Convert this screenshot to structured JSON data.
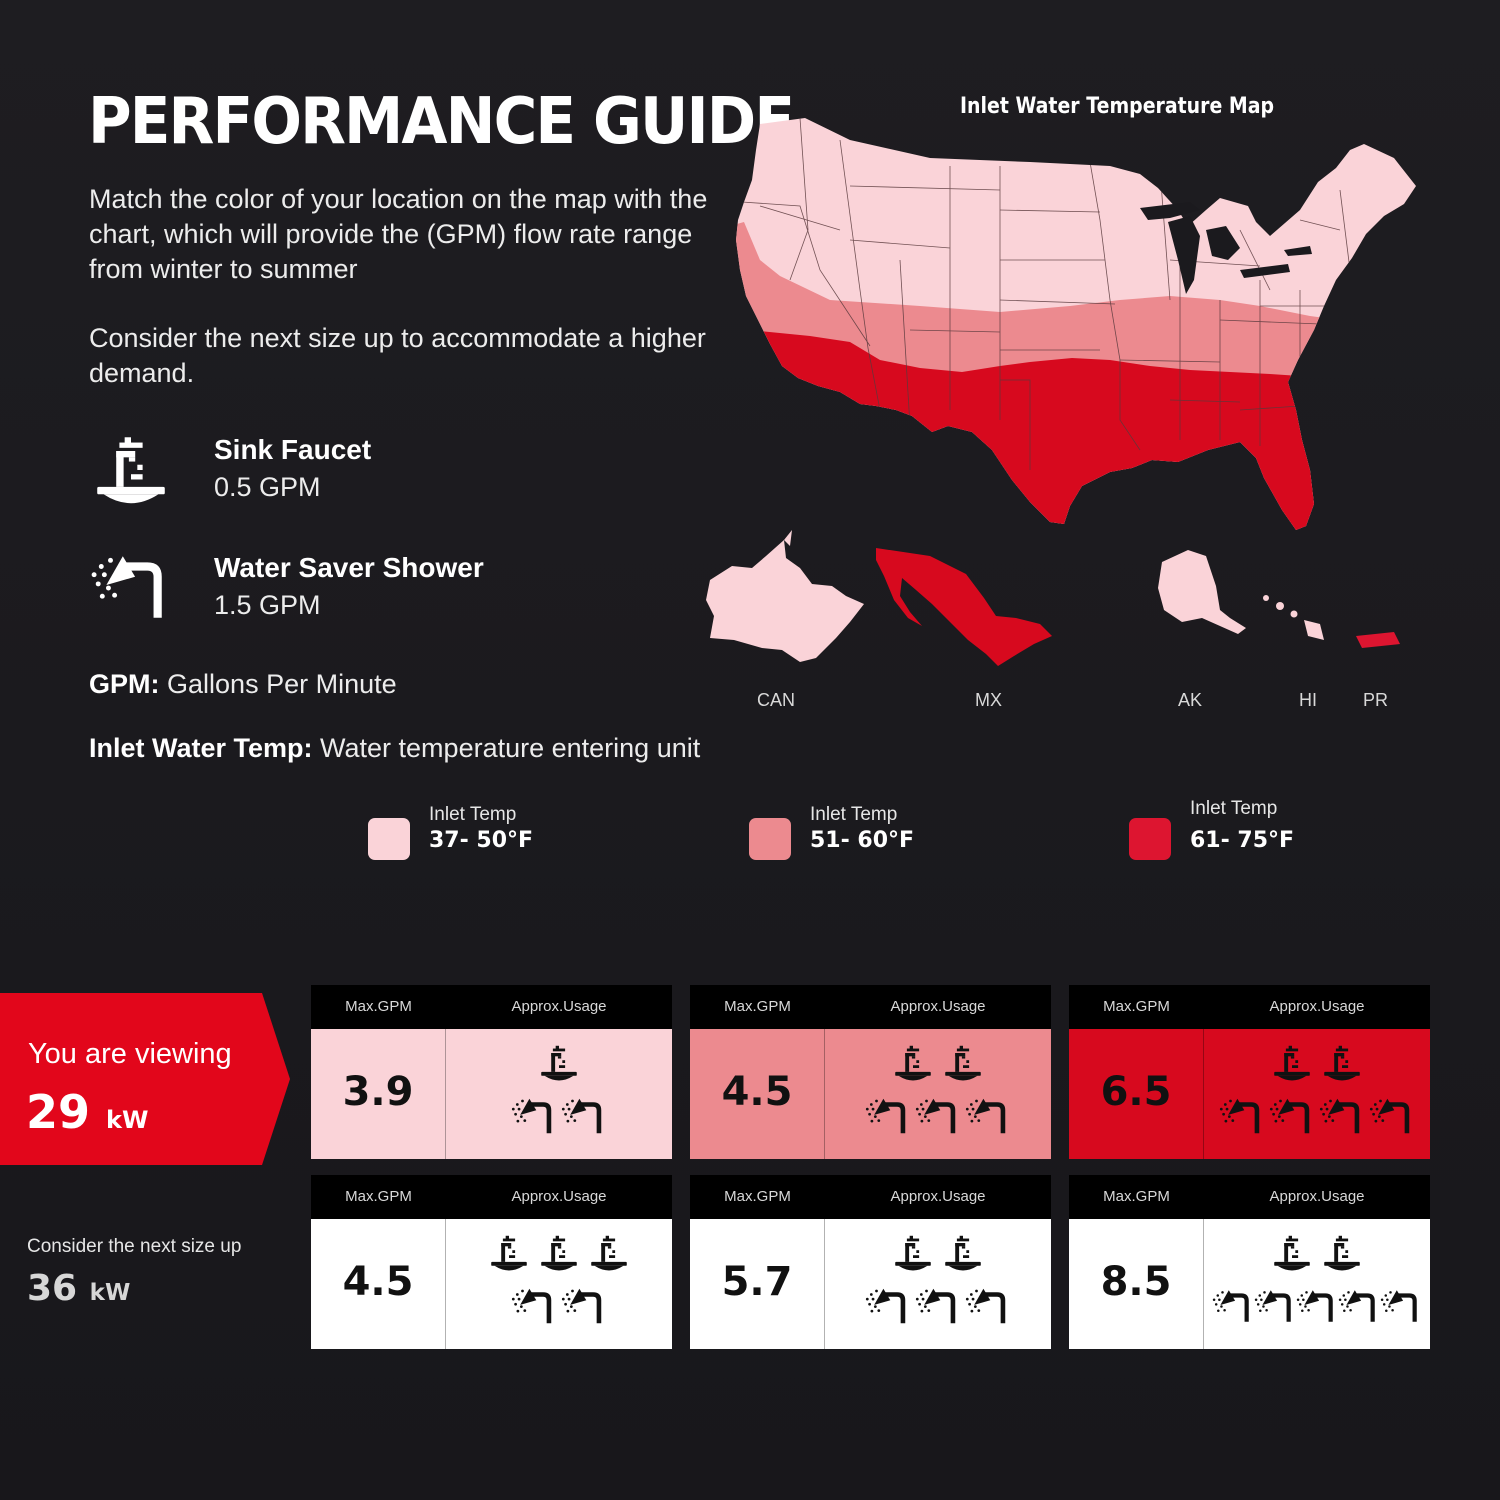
{
  "title": "PERFORMANCE GUIDE",
  "intro": {
    "p1": "Match the color of your location on the map with the chart, which will provide the (GPM) flow rate range from winter to summer",
    "p2": "Consider the next size up to accommodate a higher demand."
  },
  "fixtures": [
    {
      "name": "Sink Faucet",
      "rate": "0.5 GPM",
      "icon": "sink-faucet-icon"
    },
    {
      "name": "Water Saver Shower",
      "rate": "1.5 GPM",
      "icon": "shower-head-icon"
    }
  ],
  "definitions": {
    "gpm_term": "GPM:",
    "gpm_text": "Gallons Per Minute",
    "temp_term": "Inlet Water Temp:",
    "temp_text": "Water temperature entering unit"
  },
  "map": {
    "title": "Inlet Water Temperature Map",
    "regions": [
      "CAN",
      "MX",
      "AK",
      "HI",
      "PR"
    ]
  },
  "colors": {
    "cool": "#fad3d8",
    "mild": "#ec8a8f",
    "warm": "#d7091e",
    "banner": "#e2061b"
  },
  "legend": [
    {
      "label": "Inlet Temp",
      "range": "37- 50°F",
      "color": "#fad3d8"
    },
    {
      "label": "Inlet Temp",
      "range": "51- 60°F",
      "color": "#ec8a8f"
    },
    {
      "label": "Inlet Temp",
      "range": "61- 75°F",
      "color": "#dd1530"
    }
  ],
  "viewing": {
    "label": "You are viewing",
    "kw": "29",
    "unit": "kW"
  },
  "next_size": {
    "label": "Consider the next size up",
    "kw": "36",
    "unit": "kW"
  },
  "table_headers": {
    "gpm": "Max.GPM",
    "usage": "Approx.Usage"
  },
  "rows": [
    {
      "model": "29 kW",
      "cards": [
        {
          "zone": "37- 50°F",
          "max_gpm": "3.9",
          "sinks": 1,
          "showers": 2
        },
        {
          "zone": "51- 60°F",
          "max_gpm": "4.5",
          "sinks": 2,
          "showers": 3
        },
        {
          "zone": "61- 75°F",
          "max_gpm": "6.5",
          "sinks": 2,
          "showers": 4
        }
      ]
    },
    {
      "model": "36 kW",
      "cards": [
        {
          "zone": "37- 50°F",
          "max_gpm": "4.5",
          "sinks": 3,
          "showers": 2
        },
        {
          "zone": "51- 60°F",
          "max_gpm": "5.7",
          "sinks": 2,
          "showers": 3
        },
        {
          "zone": "61- 75°F",
          "max_gpm": "8.5",
          "sinks": 2,
          "showers": 5
        }
      ]
    }
  ]
}
